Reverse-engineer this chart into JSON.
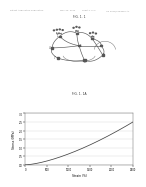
{
  "fig_label_1": "FIG. 1. 1",
  "fig_label_2": "FIG. 1. 1A",
  "header_text": "Patent Application Publication",
  "header_date": "May 24, 2012",
  "header_sheet": "Sheet 1 of 2",
  "header_num": "US 2012/0134915 A1",
  "graph_xlabel": "Strain (%)",
  "graph_ylabel": "Stress (MPa)",
  "graph_xlim": [
    0,
    2500
  ],
  "graph_ylim": [
    0,
    3.0
  ],
  "graph_xticks": [
    0,
    500,
    1000,
    1500,
    2000,
    2500
  ],
  "graph_yticks": [
    0.0,
    0.5,
    1.0,
    1.5,
    2.0,
    2.5,
    3.0
  ],
  "curve_color": "#444444",
  "bg_color": "#ffffff",
  "diagram_color": "#555555"
}
